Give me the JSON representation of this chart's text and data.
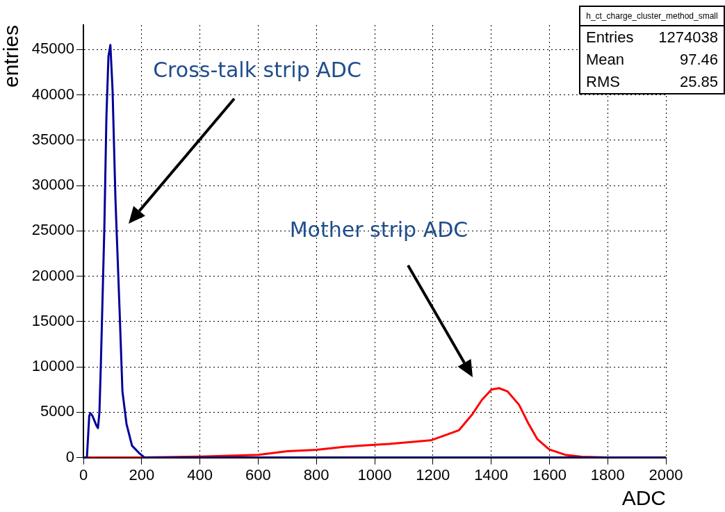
{
  "chart_data": {
    "type": "line",
    "title": "h_ct_charge_cluster_method_small",
    "xlabel": "ADC",
    "ylabel": "entries",
    "series": [
      {
        "color": "#000099",
        "x": [
          0,
          12,
          20,
          24,
          31,
          45,
          50,
          55,
          60,
          72,
          79,
          86,
          92.6,
          100,
          110,
          124,
          134,
          148,
          167,
          191,
          210,
          2000
        ],
        "values": [
          0,
          0,
          4600,
          4900,
          4600,
          3500,
          3250,
          5000,
          10400,
          25500,
          37600,
          44250,
          45500,
          40600,
          28500,
          16400,
          7300,
          3700,
          1300,
          500,
          0,
          0
        ]
      },
      {
        "color": "#ff0000",
        "x": [
          0,
          200,
          400,
          600,
          700,
          800,
          900,
          1000,
          1050,
          1193,
          1289,
          1336,
          1368,
          1401,
          1427,
          1456,
          1496,
          1527,
          1558,
          1599,
          1654,
          1711,
          1800,
          2000
        ],
        "values": [
          0,
          0,
          100,
          300,
          700,
          850,
          1200,
          1400,
          1500,
          1900,
          3000,
          4800,
          6350,
          7500,
          7650,
          7300,
          5800,
          3800,
          2050,
          900,
          300,
          80,
          0,
          0
        ]
      }
    ],
    "annotations": [
      "Cross-talk strip ADC",
      "Mother strip ADC",
      "Entries 1274038",
      "Mean 97.46",
      "RMS 25.85"
    ],
    "xlim": [
      0,
      2000
    ],
    "xticks": [
      0,
      200,
      400,
      600,
      800,
      1000,
      1200,
      1400,
      1600,
      1800,
      2000
    ],
    "ylim": [
      0,
      47700
    ],
    "yticks": [
      0,
      5000,
      10000,
      15000,
      20000,
      25000,
      30000,
      35000,
      40000,
      45000
    ],
    "grid": true,
    "legend": false,
    "marker": "none",
    "line_style": "solid"
  }
}
